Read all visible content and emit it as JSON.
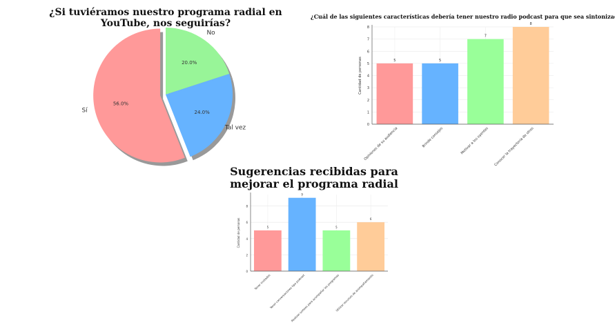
{
  "chart_data": [
    {
      "type": "pie",
      "title": "¿Si tuviéramos nuestro programa radial en YouTube, nos seguirías?",
      "categories": [
        "No",
        "Tal vez",
        "Sí"
      ],
      "values": [
        20.0,
        24.0,
        56.0
      ],
      "value_labels": [
        "20.0%",
        "24.0%",
        "56.0%"
      ],
      "colors": [
        "#98f598",
        "#66b3ff",
        "#ff9999"
      ],
      "exploded": "Sí",
      "shadow": true
    },
    {
      "type": "bar",
      "title": "¿Cuál de las siguientes características debería tener nuestro radio podcast para que sea sintonizado?",
      "categories": [
        "Opiniones de su audiencia",
        "Brinde consejos",
        "Motivar a los oyentes",
        "Conocer la trayectoria de otros"
      ],
      "values": [
        5,
        5,
        7,
        8
      ],
      "colors": [
        "#ff9999",
        "#66b3ff",
        "#99ff99",
        "#ffcc99"
      ],
      "xlabel": "",
      "ylabel": "Cantidad de personas",
      "ylim": [
        0,
        8
      ],
      "yticks": [
        0,
        1,
        2,
        3,
        4,
        5,
        6,
        7,
        8
      ],
      "grid": true
    },
    {
      "type": "bar",
      "title": "Sugerencias recibidas para mejorar el programa radial",
      "categories": [
        "Tener invitados",
        "Tener conversaciones tipo podcast",
        "Realizar sorteos para acompañar los programas",
        "Utilizar recursos de acompañamiento"
      ],
      "values": [
        5,
        9,
        5,
        6
      ],
      "colors": [
        "#ff9999",
        "#66b3ff",
        "#99ff99",
        "#ffcc99"
      ],
      "xlabel": "",
      "ylabel": "Cantidad de personas",
      "ylim": [
        0,
        9.4
      ],
      "yticks": [
        0,
        2,
        4,
        6,
        8
      ],
      "grid": true
    }
  ]
}
